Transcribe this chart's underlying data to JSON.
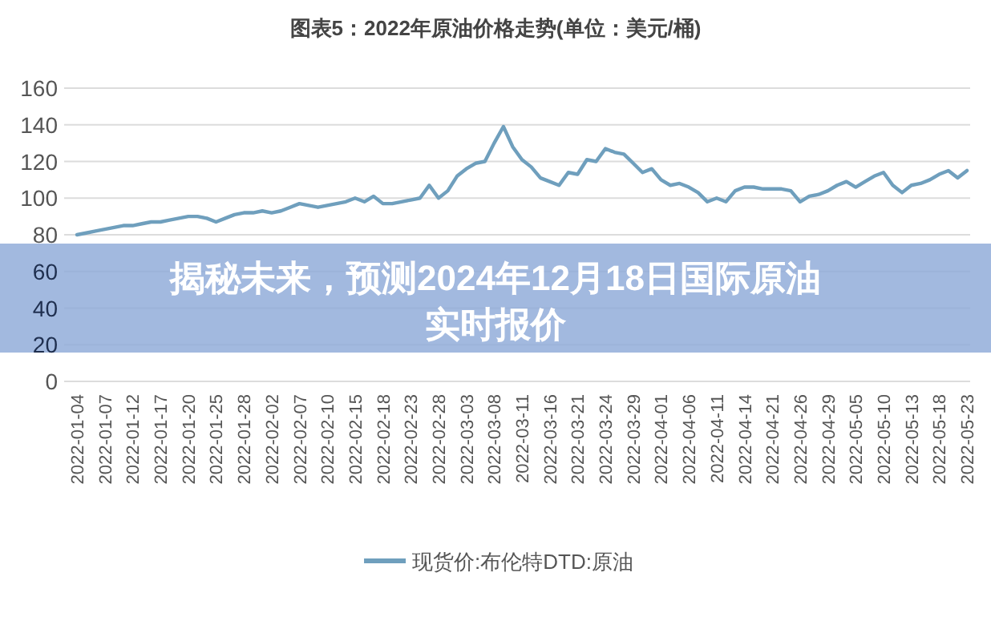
{
  "chart_data": {
    "type": "line",
    "title": "图表5：2022年原油价格走势(单位：美元/桶)",
    "categories": [
      "2022-01-04",
      null,
      null,
      "2022-01-07",
      null,
      null,
      "2022-01-12",
      null,
      null,
      "2022-01-17",
      null,
      null,
      "2022-01-20",
      null,
      null,
      "2022-01-25",
      null,
      null,
      "2022-01-28",
      null,
      null,
      "2022-02-02",
      null,
      null,
      "2022-02-07",
      null,
      null,
      "2022-02-10",
      null,
      null,
      "2022-02-15",
      null,
      null,
      "2022-02-18",
      null,
      null,
      "2022-02-23",
      null,
      null,
      "2022-02-28",
      null,
      null,
      "2022-03-03",
      null,
      null,
      "2022-03-08",
      null,
      null,
      "2022-03-11",
      null,
      null,
      "2022-03-16",
      null,
      null,
      "2022-03-21",
      null,
      null,
      "2022-03-24",
      null,
      null,
      "2022-03-29",
      null,
      null,
      "2022-04-01",
      null,
      null,
      "2022-04-06",
      null,
      null,
      "2022-04-11",
      null,
      null,
      "2022-04-14",
      null,
      null,
      "2022-04-21",
      null,
      null,
      "2022-04-26",
      null,
      null,
      "2022-04-29",
      null,
      null,
      "2022-05-05",
      null,
      null,
      "2022-05-10",
      null,
      null,
      "2022-05-13",
      null,
      null,
      "2022-05-18",
      null,
      null,
      "2022-05-23"
    ],
    "series": [
      {
        "name": "现货价:布伦特DTD:原油",
        "color": "#6f9fbd",
        "values": [
          80,
          81,
          82,
          83,
          84,
          85,
          85,
          86,
          87,
          87,
          88,
          89,
          90,
          90,
          89,
          87,
          89,
          91,
          92,
          92,
          93,
          92,
          93,
          95,
          97,
          96,
          95,
          96,
          97,
          98,
          100,
          98,
          101,
          97,
          97,
          98,
          99,
          100,
          107,
          100,
          104,
          112,
          116,
          119,
          120,
          130,
          139,
          128,
          121,
          117,
          111,
          109,
          107,
          114,
          113,
          121,
          120,
          127,
          125,
          124,
          119,
          114,
          116,
          110,
          107,
          108,
          106,
          103,
          98,
          100,
          98,
          104,
          106,
          106,
          105,
          105,
          105,
          104,
          98,
          101,
          102,
          104,
          107,
          109,
          106,
          109,
          112,
          114,
          107,
          103,
          107,
          108,
          110,
          113,
          115,
          111,
          115
        ]
      }
    ],
    "ylim": [
      0,
      160
    ],
    "yticks": [
      0,
      20,
      40,
      60,
      80,
      100,
      120,
      140,
      160
    ],
    "grid": "y",
    "legend": "bottom",
    "annotations": [
      "揭秘未来，预测2024年12月18日国际原油实时报价"
    ]
  }
}
